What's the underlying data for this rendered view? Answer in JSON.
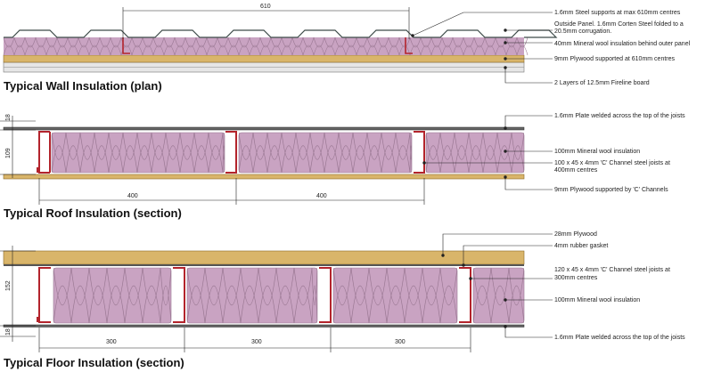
{
  "colors": {
    "insulation": "#c9a3c2",
    "insulation_stroke": "#9a7893",
    "plywood": "#d9b56a",
    "plywood_stroke": "#8a6a2a",
    "steel": "#b3242c",
    "board": "#e6e6e6",
    "panel": "#8fa4a0",
    "line": "#222222"
  },
  "wall": {
    "title": "Typical Wall Insulation (plan)",
    "dim_610": "610",
    "notes": [
      "1.6mm Steel supports at max 610mm centres",
      "Outside Panel. 1.6mm Corten Steel folded to a",
      "20.5mm corrugation.",
      "40mm Mineral wool insulation behind outer panel",
      "9mm Plywood supported at 610mm centres",
      "2 Layers of 12.5mm Fireline board"
    ]
  },
  "roof": {
    "title": "Typical Roof Insulation (section)",
    "dim_18": "18",
    "dim_109": "109",
    "dim_400_a": "400",
    "dim_400_b": "400",
    "notes": [
      "1.6mm Plate welded across the top of the joists",
      "100mm Mineral wool insulation",
      "100 x 45 x 4mm 'C' Channel steel joists at",
      "400mm centres",
      "9mm  Plywood supported by 'C' Channels"
    ]
  },
  "floor": {
    "title": "Typical Floor Insulation (section)",
    "dim_152": "152",
    "dim_18": "18",
    "dim_300_a": "300",
    "dim_300_b": "300",
    "dim_300_c": "300",
    "notes": [
      "28mm Plywood",
      "4mm rubber gasket",
      "120 x 45 x 4mm 'C' Channel steel joists at",
      "300mm centres",
      "100mm Mineral wool insulation",
      "1.6mm Plate welded across the top of the joists"
    ]
  }
}
